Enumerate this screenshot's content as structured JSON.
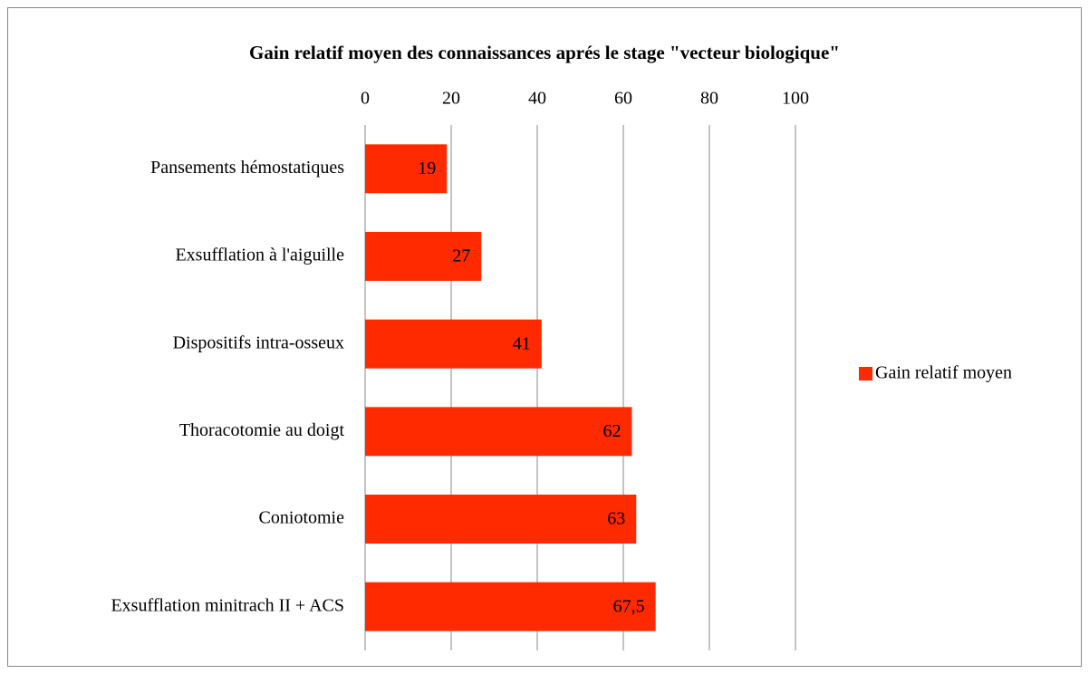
{
  "chart_data": {
    "type": "bar",
    "orientation": "horizontal",
    "title": "Gain relatif moyen des connaissances aprés le stage \"vecteur biologique\"",
    "categories": [
      "Pansements hémostatiques",
      "Exsufflation à l'aiguille",
      "Dispositifs intra-osseux",
      "Thoracotomie au doigt",
      "Coniotomie",
      "Exsufflation minitrach II + ACS"
    ],
    "series": [
      {
        "name": "Gain relatif moyen",
        "color": "#ff2a00",
        "values": [
          19,
          27,
          41,
          62,
          63,
          67.5
        ],
        "value_labels": [
          "19",
          "27",
          "41",
          "62",
          "63",
          "67,5"
        ]
      }
    ],
    "xlim": [
      0,
      100
    ],
    "xticks": [
      0,
      20,
      40,
      60,
      80,
      100
    ],
    "grid": true,
    "legend": "right"
  }
}
